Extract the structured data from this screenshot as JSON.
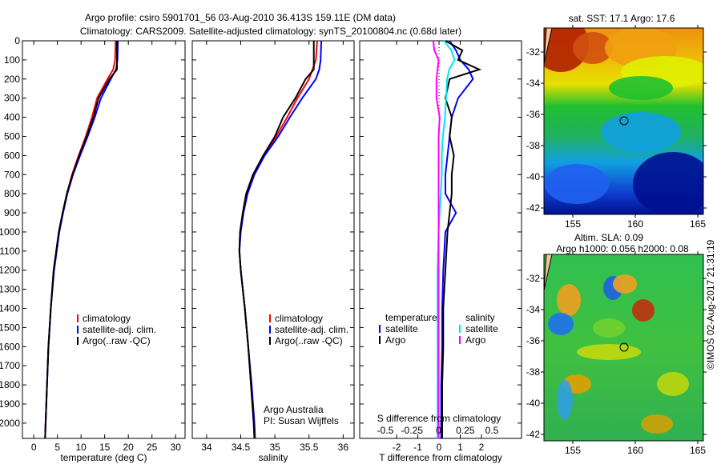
{
  "title_line1": "Argo profile: csiro 5901701_56 03-Aug-2010 36.413S 159.11E (DM data)",
  "title_line2": "Climatology: CARS2009. Satellite-adjusted climatology: synTS_20100804.nc (0.68d later)",
  "colors": {
    "climatology": "#ff0000",
    "satellite": "#0000ff",
    "argo": "#000000",
    "sal_satellite": "#00e5ee",
    "sal_argo": "#ff00ff"
  },
  "chart_data": [
    {
      "type": "line",
      "name": "temperature-profile",
      "xlabel": "temperature (deg C)",
      "xlim": [
        -2.4,
        32
      ],
      "ylim": [
        0,
        2080
      ],
      "xticks": [
        0,
        5,
        10,
        15,
        20,
        25,
        30
      ],
      "yticks": [
        0,
        100,
        200,
        300,
        400,
        500,
        600,
        700,
        800,
        900,
        1000,
        1100,
        1200,
        1300,
        1400,
        1500,
        1600,
        1700,
        1800,
        1900,
        2000
      ],
      "depth": [
        0,
        100,
        150,
        200,
        300,
        400,
        500,
        600,
        700,
        800,
        900,
        1000,
        1200,
        1400,
        1600,
        1800,
        2000,
        2080
      ],
      "series": [
        {
          "name": "climatology",
          "color": "#ff0000",
          "values": [
            17.3,
            17.2,
            16.8,
            15.6,
            13.4,
            12.3,
            11.0,
            9.5,
            8.1,
            7.0,
            6.1,
            5.3,
            4.2,
            3.6,
            3.1,
            2.8,
            2.5,
            2.4
          ]
        },
        {
          "name": "satellite-adj. clim.",
          "color": "#0000ff",
          "values": [
            17.8,
            17.7,
            17.4,
            16.3,
            14.2,
            12.9,
            11.4,
            9.8,
            8.3,
            7.1,
            6.2,
            5.4,
            4.3,
            3.6,
            3.1,
            2.8,
            2.5,
            2.4
          ]
        },
        {
          "name": "Argo(..raw -QC)",
          "color": "#000000",
          "values": [
            17.6,
            17.6,
            17.6,
            16.0,
            13.7,
            12.6,
            11.2,
            9.6,
            8.2,
            7.0,
            6.1,
            5.3,
            4.2,
            3.6,
            3.1,
            2.8,
            2.5,
            2.4
          ]
        }
      ],
      "legend": [
        "climatology",
        "satellite-adj. clim.",
        "Argo(..raw -QC)"
      ]
    },
    {
      "type": "line",
      "name": "salinity-profile",
      "xlabel": "salinity",
      "xlim": [
        33.79,
        36.16
      ],
      "ylim": [
        0,
        2080
      ],
      "xticks": [
        34,
        34.5,
        35,
        35.5,
        36
      ],
      "depth": [
        0,
        100,
        150,
        200,
        300,
        400,
        500,
        600,
        700,
        800,
        900,
        1000,
        1100,
        1200,
        1400,
        1600,
        1800,
        2000,
        2080
      ],
      "series": [
        {
          "name": "climatology",
          "color": "#ff0000",
          "values": [
            35.62,
            35.6,
            35.55,
            35.5,
            35.33,
            35.18,
            35.02,
            34.83,
            34.68,
            34.58,
            34.53,
            34.49,
            34.48,
            34.5,
            34.56,
            34.61,
            34.65,
            34.69,
            34.7
          ]
        },
        {
          "name": "satellite-adj. clim.",
          "color": "#0000ff",
          "values": [
            35.68,
            35.67,
            35.65,
            35.6,
            35.4,
            35.22,
            35.05,
            34.85,
            34.7,
            34.6,
            34.54,
            34.5,
            34.48,
            34.5,
            34.56,
            34.61,
            34.66,
            34.7,
            34.71
          ]
        },
        {
          "name": "Argo(..raw -QC)",
          "color": "#000000",
          "values": [
            35.57,
            35.57,
            35.57,
            35.45,
            35.3,
            35.12,
            35.0,
            34.83,
            34.68,
            34.58,
            34.53,
            34.49,
            34.48,
            34.5,
            34.56,
            34.61,
            34.65,
            34.69,
            34.7
          ]
        }
      ],
      "legend": [
        "climatology",
        "satellite-adj. clim.",
        "Argo(..raw -QC)"
      ],
      "annotation": [
        "Argo Australia",
        "PI: Susan Wijffels"
      ]
    },
    {
      "type": "line",
      "name": "difference-profile",
      "xlabel": "T difference from climatology",
      "xlim": [
        -3.74,
        3.89
      ],
      "ylim": [
        0,
        2080
      ],
      "xticks": [
        -2,
        -1,
        0,
        1,
        2
      ],
      "top_xlabel": "S difference from climatology",
      "top_xticks": [
        -0.5,
        -0.25,
        0,
        0.25,
        0.5
      ],
      "top_xtick_labels": [
        "-0.5",
        "-0.25",
        "0",
        "0.25",
        "0.5"
      ],
      "depth": [
        0,
        50,
        100,
        150,
        200,
        300,
        400,
        500,
        600,
        700,
        800,
        900,
        1000,
        1200,
        1400,
        1600,
        1800,
        2000,
        2080
      ],
      "series": [
        {
          "name": "temperature satellite",
          "color": "#0000ff",
          "scale": "T",
          "values": [
            0.5,
            0.8,
            1.0,
            1.4,
            1.6,
            0.9,
            0.6,
            0.5,
            0.4,
            0.3,
            0.3,
            0.8,
            0.3,
            0.2,
            0.15,
            0.15,
            0.1,
            0.1,
            0.1
          ]
        },
        {
          "name": "temperature Argo",
          "color": "#000000",
          "scale": "T",
          "values": [
            0.3,
            1.1,
            0.9,
            1.9,
            0.5,
            0.3,
            0.6,
            0.5,
            0.7,
            0.6,
            0.6,
            0.5,
            0.4,
            0.3,
            0.2,
            0.2,
            0.15,
            0.15,
            0.15
          ]
        },
        {
          "name": "salinity satellite",
          "color": "#00e5ee",
          "scale": "S",
          "values": [
            0.05,
            0.12,
            0.15,
            0.1,
            0.08,
            0.07,
            0.06,
            0.04,
            0.03,
            0.03,
            0.02,
            0.01,
            0.0,
            -0.01,
            -0.01,
            -0.01,
            -0.01,
            -0.01,
            -0.01
          ]
        },
        {
          "name": "salinity Argo",
          "color": "#ff00ff",
          "scale": "S",
          "values": [
            -0.05,
            -0.04,
            0.0,
            -0.01,
            -0.02,
            -0.02,
            0.01,
            0.0,
            0.0,
            0.0,
            0.0,
            0.0,
            0.0,
            0.0,
            0.0,
            0.0,
            0.0,
            0.0,
            0.0
          ]
        }
      ],
      "legend": {
        "temperature": "temperature",
        "salinity": "salinity",
        "satellite": "satellite",
        "argo": "Argo"
      }
    }
  ],
  "maps": {
    "sst": {
      "title": "sat. SST: 17.1 Argo: 17.6",
      "xticks": [
        "155",
        "160",
        "165"
      ],
      "yticks": [
        "-32",
        "-34",
        "-36",
        "-38",
        "-40",
        "-42"
      ]
    },
    "sla": {
      "title_line1": "Altim. SLA: 0.09",
      "title_line2": "Argo h1000: 0.056 h2000: 0.08",
      "xticks": [
        "155",
        "160",
        "165"
      ],
      "yticks": [
        "-32",
        "-34",
        "-36",
        "-38",
        "-40",
        "-42"
      ]
    }
  },
  "credit": "©IMOS 02-Aug-2017 21:31:19"
}
